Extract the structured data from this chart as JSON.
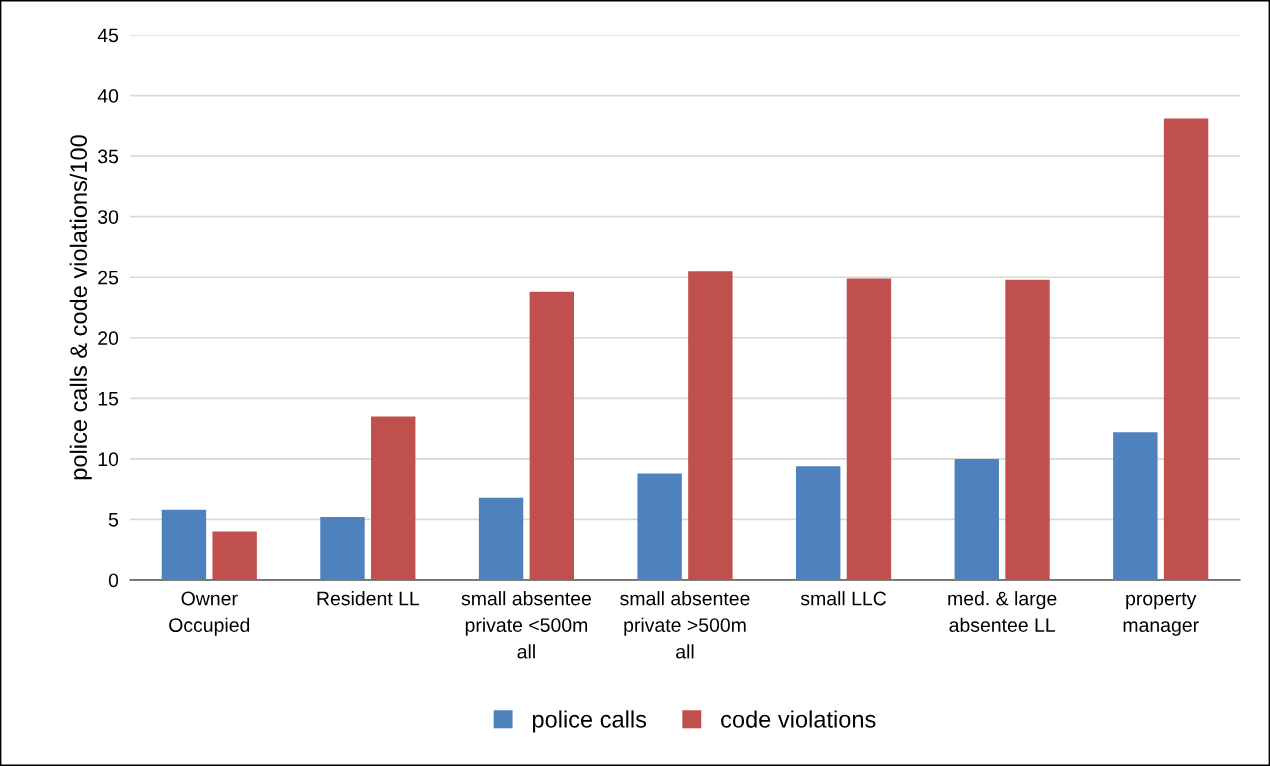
{
  "chart_data": {
    "type": "bar",
    "ylabel": "police calls & code violations/100",
    "categories": [
      "Owner\nOccupied",
      "Resident LL",
      "small absentee\nprivate <500m\nall",
      "small absentee\nprivate >500m\nall",
      "small LLC",
      "med. & large\nabsentee LL",
      "property\nmanager"
    ],
    "series": [
      {
        "name": "police calls",
        "color": "#4f81bd",
        "values": [
          5.8,
          5.2,
          6.8,
          8.8,
          9.4,
          10.0,
          12.2
        ]
      },
      {
        "name": "code violations",
        "color": "#c0504d",
        "values": [
          4.0,
          13.5,
          23.8,
          25.5,
          24.9,
          24.8,
          38.1
        ]
      }
    ],
    "ylim": [
      0,
      45
    ],
    "yticks": [
      0,
      5,
      10,
      15,
      20,
      25,
      30,
      35,
      40,
      45
    ],
    "grid": "y",
    "legend": "bottom"
  }
}
